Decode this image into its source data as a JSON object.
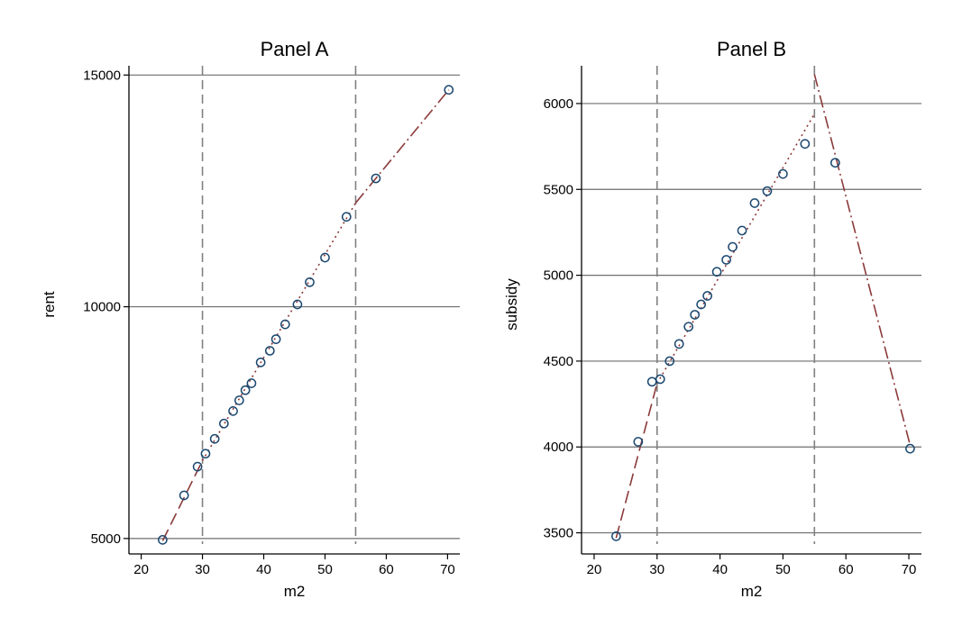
{
  "chart_data": [
    {
      "type": "scatter",
      "title": "Panel A",
      "xlabel": "m2",
      "ylabel": "rent",
      "xlim": [
        18,
        72
      ],
      "ylim": [
        4900,
        15200
      ],
      "xticks": [
        20,
        30,
        40,
        50,
        60,
        70
      ],
      "yticks": [
        5000,
        10000,
        15000
      ],
      "grid": "horizontal",
      "vlines": [
        30,
        55
      ],
      "points": [
        {
          "x": 23.5,
          "y": 4970
        },
        {
          "x": 27.0,
          "y": 5930
        },
        {
          "x": 29.2,
          "y": 6550
        },
        {
          "x": 30.5,
          "y": 6830
        },
        {
          "x": 32.0,
          "y": 7150
        },
        {
          "x": 33.5,
          "y": 7480
        },
        {
          "x": 35.0,
          "y": 7750
        },
        {
          "x": 36.0,
          "y": 7980
        },
        {
          "x": 37.0,
          "y": 8200
        },
        {
          "x": 38.0,
          "y": 8350
        },
        {
          "x": 39.5,
          "y": 8800
        },
        {
          "x": 41.0,
          "y": 9050
        },
        {
          "x": 42.0,
          "y": 9300
        },
        {
          "x": 43.5,
          "y": 9620
        },
        {
          "x": 45.5,
          "y": 10050
        },
        {
          "x": 47.5,
          "y": 10530
        },
        {
          "x": 50.0,
          "y": 11060
        },
        {
          "x": 53.5,
          "y": 11940
        },
        {
          "x": 58.3,
          "y": 12770
        },
        {
          "x": 70.2,
          "y": 14680
        }
      ],
      "fit_lines": [
        {
          "style": "long-dash",
          "x": [
            23.5,
            30
          ],
          "y": [
            4950,
            6680
          ]
        },
        {
          "style": "dotted",
          "x": [
            30,
            55
          ],
          "y": [
            6680,
            12240
          ]
        },
        {
          "style": "dash-dot",
          "x": [
            55,
            70.2
          ],
          "y": [
            12240,
            14680
          ]
        }
      ]
    },
    {
      "type": "scatter",
      "title": "Panel B",
      "xlabel": "m2",
      "ylabel": "subsidy",
      "xlim": [
        18,
        72
      ],
      "ylim": [
        3440,
        6220
      ],
      "xticks": [
        20,
        30,
        40,
        50,
        60,
        70
      ],
      "yticks": [
        3500,
        4000,
        4500,
        5000,
        5500,
        6000
      ],
      "grid": "horizontal",
      "vlines": [
        30,
        55
      ],
      "points": [
        {
          "x": 23.5,
          "y": 3480
        },
        {
          "x": 27.0,
          "y": 4030
        },
        {
          "x": 29.2,
          "y": 4380
        },
        {
          "x": 30.5,
          "y": 4395
        },
        {
          "x": 32.0,
          "y": 4500
        },
        {
          "x": 33.5,
          "y": 4600
        },
        {
          "x": 35.0,
          "y": 4700
        },
        {
          "x": 36.0,
          "y": 4770
        },
        {
          "x": 37.0,
          "y": 4830
        },
        {
          "x": 38.0,
          "y": 4880
        },
        {
          "x": 39.5,
          "y": 5020
        },
        {
          "x": 41.0,
          "y": 5090
        },
        {
          "x": 42.0,
          "y": 5165
        },
        {
          "x": 43.5,
          "y": 5260
        },
        {
          "x": 45.5,
          "y": 5420
        },
        {
          "x": 47.5,
          "y": 5490
        },
        {
          "x": 50.0,
          "y": 5590
        },
        {
          "x": 53.5,
          "y": 5765
        },
        {
          "x": 58.3,
          "y": 5655
        },
        {
          "x": 70.2,
          "y": 3990
        }
      ],
      "fit_lines": [
        {
          "style": "long-dash",
          "x": [
            23.5,
            30
          ],
          "y": [
            3470,
            4370
          ]
        },
        {
          "style": "dotted",
          "x": [
            30,
            55
          ],
          "y": [
            4370,
            5940
          ]
        },
        {
          "style": "dash-dot",
          "x": [
            55,
            70.2
          ],
          "y": [
            6170,
            4010
          ]
        }
      ]
    }
  ]
}
